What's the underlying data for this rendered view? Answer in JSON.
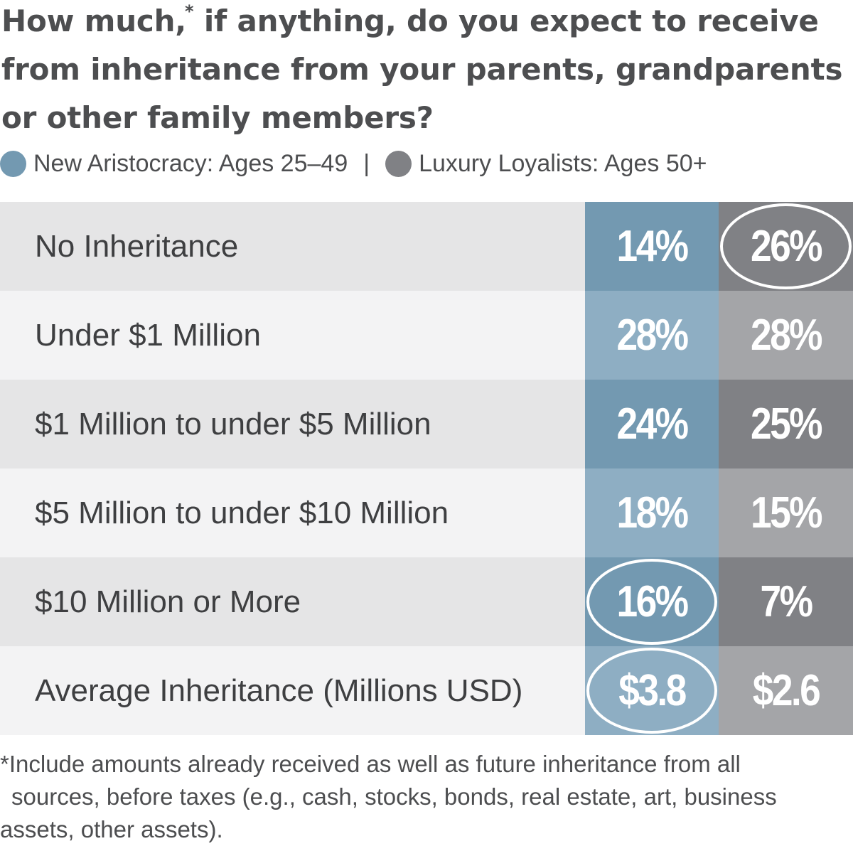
{
  "title": "How much,* if anything, do you expect to receive from inheritance from your parents, grandparents or other family members?",
  "title_parts": {
    "before_star": "How much,",
    "star": "*",
    "after_star": " if anything, do you expect to receive from inheritance from your parents, grandparents or other family members?"
  },
  "legend": {
    "separator": "|",
    "items": [
      {
        "label": "New Aristocracy: Ages 25–49",
        "color": "#7399b1"
      },
      {
        "label": "Luxury Loyalists: Ages 50+",
        "color": "#808185"
      }
    ]
  },
  "colors": {
    "row_dark_bg": "#e5e5e6",
    "row_light_bg": "#f3f3f4",
    "series_a_dark": "#7399b1",
    "series_a_light": "#8eaec3",
    "series_b_dark": "#808185",
    "series_b_light": "#a4a5a8",
    "highlight_ring": "#ffffff"
  },
  "chart_data": {
    "type": "table",
    "title": "How much,* if anything, do you expect to receive from inheritance from your parents, grandparents or other family members?",
    "categories": [
      "No Inheritance",
      "Under $1 Million",
      "$1 Million to under $5 Million",
      "$5 Million to under $10 Million",
      "$10 Million or More",
      "Average Inheritance (Millions USD)"
    ],
    "series": [
      {
        "name": "New Aristocracy: Ages 25–49",
        "values": [
          14,
          28,
          24,
          18,
          16,
          3.8
        ],
        "display": [
          "14%",
          "28%",
          "24%",
          "18%",
          "16%",
          "$3.8"
        ],
        "highlighted": [
          false,
          false,
          false,
          false,
          true,
          true
        ]
      },
      {
        "name": "Luxury Loyalists: Ages 50+",
        "values": [
          26,
          28,
          25,
          15,
          7,
          2.6
        ],
        "display": [
          "26%",
          "28%",
          "25%",
          "15%",
          "7%",
          "$2.6"
        ],
        "highlighted": [
          true,
          false,
          false,
          false,
          false,
          false
        ]
      }
    ]
  },
  "footnote": {
    "line1": "*Include amounts already received as well as future inheritance from all",
    "line2": "sources, before taxes (e.g., cash, stocks, bonds, real estate, art, business",
    "line3": "assets, other assets)."
  }
}
